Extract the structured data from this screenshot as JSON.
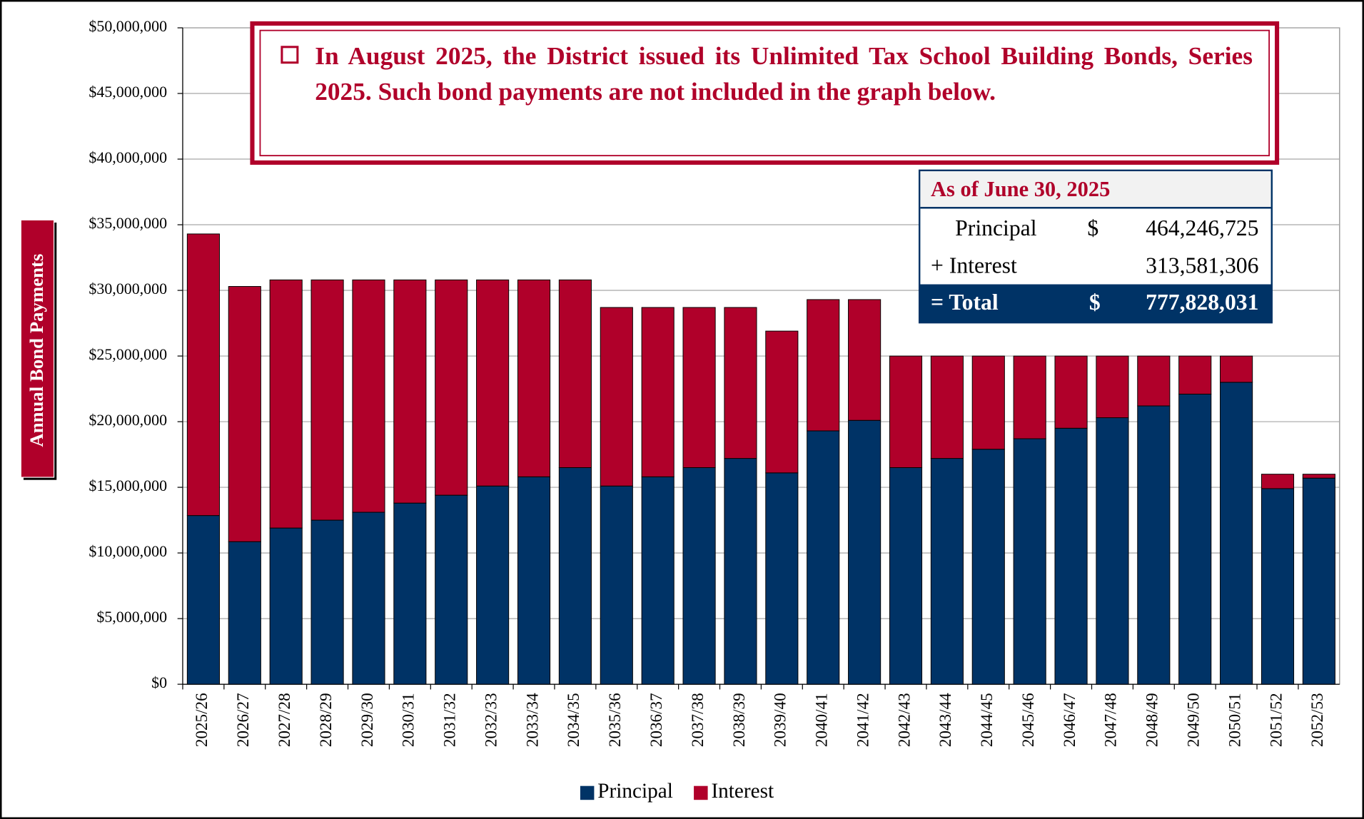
{
  "chart_data": {
    "type": "stacked_bar",
    "y_axis_label": "Annual Bond Payments",
    "annotation": "In August 2025, the District issued its Unlimited Tax School Building Bonds, Series 2025. Such bond payments are not included in the graph below.",
    "summary": {
      "title": "As of June 30, 2025",
      "rows": [
        {
          "label": "Principal",
          "currency": "$",
          "amount": "464,246,725"
        },
        {
          "label": "+ Interest",
          "amount": "313,581,306"
        },
        {
          "label": "= Total",
          "currency": "$",
          "amount": "777,828,031"
        }
      ]
    },
    "categories": [
      "2025/26",
      "2026/27",
      "2027/28",
      "2028/29",
      "2029/30",
      "2030/31",
      "2031/32",
      "2032/33",
      "2033/34",
      "2034/35",
      "2035/36",
      "2036/37",
      "2037/38",
      "2038/39",
      "2039/40",
      "2040/41",
      "2041/42",
      "2042/43",
      "2043/44",
      "2044/45",
      "2045/46",
      "2046/47",
      "2047/48",
      "2048/49",
      "2049/50",
      "2050/51",
      "2051/52",
      "2052/53"
    ],
    "series": [
      {
        "name": "Principal",
        "color": "#003366",
        "values": [
          12850000,
          10860000,
          11900000,
          12500000,
          13100000,
          13800000,
          14400000,
          15100000,
          15800000,
          16500000,
          15100000,
          15800000,
          16500000,
          17200000,
          16100000,
          19300000,
          20100000,
          16500000,
          17200000,
          17900000,
          18700000,
          19500000,
          20300000,
          21200000,
          22100000,
          23000000,
          14900000,
          15700000
        ]
      },
      {
        "name": "Interest",
        "color": "#b0002a",
        "values": [
          21450000,
          19440000,
          18900000,
          18300000,
          17700000,
          17000000,
          16400000,
          15700000,
          15000000,
          14300000,
          13600000,
          12900000,
          12200000,
          11500000,
          10800000,
          10000000,
          9200000,
          8500000,
          7800000,
          7100000,
          6300000,
          5500000,
          4700000,
          3800000,
          2900000,
          2000000,
          1100000,
          300000
        ]
      }
    ],
    "ylim": [
      0,
      50000000
    ],
    "yticks": [
      {
        "value": 0,
        "label": "$0"
      },
      {
        "value": 5000000,
        "label": "$5,000,000"
      },
      {
        "value": 10000000,
        "label": "$10,000,000"
      },
      {
        "value": 15000000,
        "label": "$15,000,000"
      },
      {
        "value": 20000000,
        "label": "$20,000,000"
      },
      {
        "value": 25000000,
        "label": "$25,000,000"
      },
      {
        "value": 30000000,
        "label": "$30,000,000"
      },
      {
        "value": 35000000,
        "label": "$35,000,000"
      },
      {
        "value": 40000000,
        "label": "$40,000,000"
      },
      {
        "value": 45000000,
        "label": "$45,000,000"
      },
      {
        "value": 50000000,
        "label": "$50,000,000"
      }
    ],
    "grid": true,
    "legend": "bottom"
  }
}
